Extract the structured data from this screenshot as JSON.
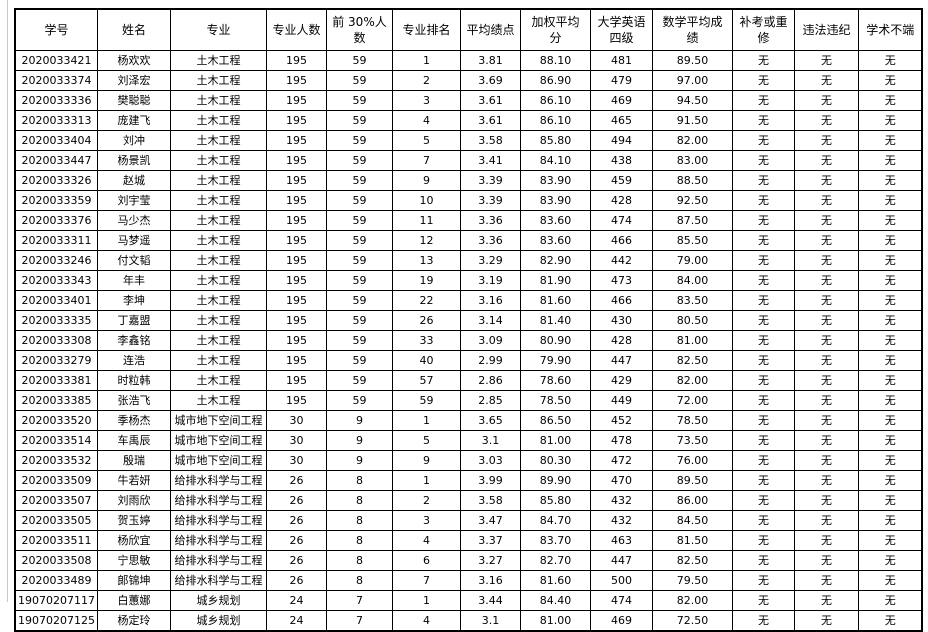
{
  "colors": {
    "background": "#ffffff",
    "border": "#000000",
    "text": "#000000",
    "gridline": "#c9c9c9"
  },
  "table": {
    "columns": [
      {
        "key": "student_id",
        "label": "学号"
      },
      {
        "key": "name",
        "label": "姓名"
      },
      {
        "key": "major",
        "label": "专业"
      },
      {
        "key": "major_count",
        "label": "专业人数"
      },
      {
        "key": "top30_count",
        "label": "前 30%人\n数"
      },
      {
        "key": "major_rank",
        "label": "专业排名"
      },
      {
        "key": "gpa",
        "label": "平均绩点"
      },
      {
        "key": "weighted_avg",
        "label": "加权平均\n分"
      },
      {
        "key": "cet4",
        "label": "大学英语\n四级"
      },
      {
        "key": "math_avg",
        "label": "数学平均成\n绩"
      },
      {
        "key": "makeup_or_retake",
        "label": "补考或重\n修"
      },
      {
        "key": "law_violation",
        "label": "违法违纪"
      },
      {
        "key": "academic_misconduct",
        "label": "学术不端"
      }
    ],
    "rows": [
      [
        "2020033421",
        "杨欢欢",
        "土木工程",
        "195",
        "59",
        "1",
        "3.81",
        "88.10",
        "481",
        "89.50",
        "无",
        "无",
        "无"
      ],
      [
        "2020033374",
        "刘泽宏",
        "土木工程",
        "195",
        "59",
        "2",
        "3.69",
        "86.90",
        "479",
        "97.00",
        "无",
        "无",
        "无"
      ],
      [
        "2020033336",
        "樊聪聪",
        "土木工程",
        "195",
        "59",
        "3",
        "3.61",
        "86.10",
        "469",
        "94.50",
        "无",
        "无",
        "无"
      ],
      [
        "2020033313",
        "庞建飞",
        "土木工程",
        "195",
        "59",
        "4",
        "3.61",
        "86.10",
        "465",
        "91.50",
        "无",
        "无",
        "无"
      ],
      [
        "2020033404",
        "刘冲",
        "土木工程",
        "195",
        "59",
        "5",
        "3.58",
        "85.80",
        "494",
        "82.00",
        "无",
        "无",
        "无"
      ],
      [
        "2020033447",
        "杨景凯",
        "土木工程",
        "195",
        "59",
        "7",
        "3.41",
        "84.10",
        "438",
        "83.00",
        "无",
        "无",
        "无"
      ],
      [
        "2020033326",
        "赵城",
        "土木工程",
        "195",
        "59",
        "9",
        "3.39",
        "83.90",
        "459",
        "88.50",
        "无",
        "无",
        "无"
      ],
      [
        "2020033359",
        "刘宇莹",
        "土木工程",
        "195",
        "59",
        "10",
        "3.39",
        "83.90",
        "428",
        "92.50",
        "无",
        "无",
        "无"
      ],
      [
        "2020033376",
        "马少杰",
        "土木工程",
        "195",
        "59",
        "11",
        "3.36",
        "83.60",
        "474",
        "87.50",
        "无",
        "无",
        "无"
      ],
      [
        "2020033311",
        "马梦遥",
        "土木工程",
        "195",
        "59",
        "12",
        "3.36",
        "83.60",
        "466",
        "85.50",
        "无",
        "无",
        "无"
      ],
      [
        "2020033246",
        "付文韬",
        "土木工程",
        "195",
        "59",
        "13",
        "3.29",
        "82.90",
        "442",
        "79.00",
        "无",
        "无",
        "无"
      ],
      [
        "2020033343",
        "年丰",
        "土木工程",
        "195",
        "59",
        "19",
        "3.19",
        "81.90",
        "473",
        "84.00",
        "无",
        "无",
        "无"
      ],
      [
        "2020033401",
        "李坤",
        "土木工程",
        "195",
        "59",
        "22",
        "3.16",
        "81.60",
        "466",
        "83.50",
        "无",
        "无",
        "无"
      ],
      [
        "2020033335",
        "丁嘉盟",
        "土木工程",
        "195",
        "59",
        "26",
        "3.14",
        "81.40",
        "430",
        "80.50",
        "无",
        "无",
        "无"
      ],
      [
        "2020033308",
        "李鑫铭",
        "土木工程",
        "195",
        "59",
        "33",
        "3.09",
        "80.90",
        "428",
        "81.00",
        "无",
        "无",
        "无"
      ],
      [
        "2020033279",
        "连浩",
        "土木工程",
        "195",
        "59",
        "40",
        "2.99",
        "79.90",
        "447",
        "82.50",
        "无",
        "无",
        "无"
      ],
      [
        "2020033381",
        "时粒韩",
        "土木工程",
        "195",
        "59",
        "57",
        "2.86",
        "78.60",
        "429",
        "82.00",
        "无",
        "无",
        "无"
      ],
      [
        "2020033385",
        "张浩飞",
        "土木工程",
        "195",
        "59",
        "59",
        "2.85",
        "78.50",
        "449",
        "72.00",
        "无",
        "无",
        "无"
      ],
      [
        "2020033520",
        "季杨杰",
        "城市地下空间工程",
        "30",
        "9",
        "1",
        "3.65",
        "86.50",
        "452",
        "78.50",
        "无",
        "无",
        "无"
      ],
      [
        "2020033514",
        "车禹辰",
        "城市地下空间工程",
        "30",
        "9",
        "5",
        "3.1",
        "81.00",
        "478",
        "73.50",
        "无",
        "无",
        "无"
      ],
      [
        "2020033532",
        "殷瑞",
        "城市地下空间工程",
        "30",
        "9",
        "9",
        "3.03",
        "80.30",
        "472",
        "76.00",
        "无",
        "无",
        "无"
      ],
      [
        "2020033509",
        "牛若妍",
        "给排水科学与工程",
        "26",
        "8",
        "1",
        "3.99",
        "89.90",
        "470",
        "89.50",
        "无",
        "无",
        "无"
      ],
      [
        "2020033507",
        "刘雨欣",
        "给排水科学与工程",
        "26",
        "8",
        "2",
        "3.58",
        "85.80",
        "432",
        "86.00",
        "无",
        "无",
        "无"
      ],
      [
        "2020033505",
        "贺玉婷",
        "给排水科学与工程",
        "26",
        "8",
        "3",
        "3.47",
        "84.70",
        "432",
        "84.50",
        "无",
        "无",
        "无"
      ],
      [
        "2020033511",
        "杨欣宜",
        "给排水科学与工程",
        "26",
        "8",
        "4",
        "3.37",
        "83.70",
        "463",
        "81.50",
        "无",
        "无",
        "无"
      ],
      [
        "2020033508",
        "宁思敏",
        "给排水科学与工程",
        "26",
        "8",
        "6",
        "3.27",
        "82.70",
        "447",
        "82.50",
        "无",
        "无",
        "无"
      ],
      [
        "2020033489",
        "郞锦坤",
        "给排水科学与工程",
        "26",
        "8",
        "7",
        "3.16",
        "81.60",
        "500",
        "79.50",
        "无",
        "无",
        "无"
      ],
      [
        "19070207117",
        "白蕙娜",
        "城乡规划",
        "24",
        "7",
        "1",
        "3.44",
        "84.40",
        "474",
        "82.00",
        "无",
        "无",
        "无"
      ],
      [
        "19070207125",
        "杨定玲",
        "城乡规划",
        "24",
        "7",
        "4",
        "3.1",
        "81.00",
        "469",
        "72.50",
        "无",
        "无",
        "无"
      ]
    ]
  }
}
